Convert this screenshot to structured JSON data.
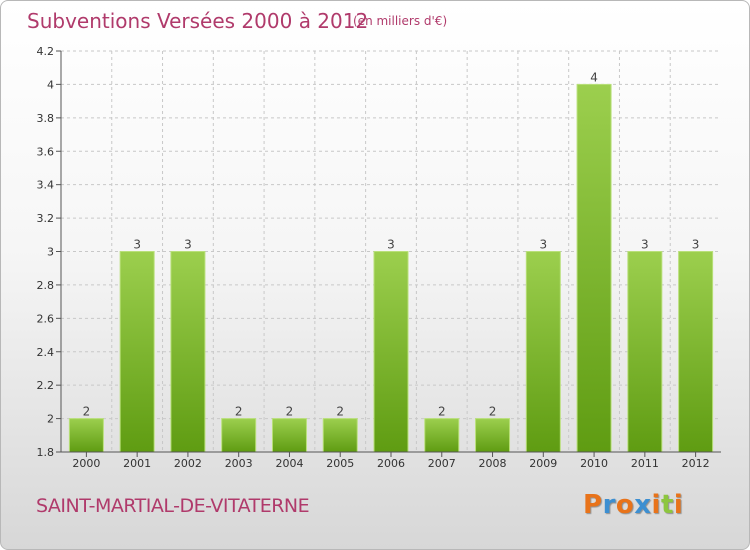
{
  "header": {
    "title": "Subventions Versées 2000 à 2012",
    "subtitle": "(en milliers d'€)"
  },
  "footer": {
    "commune": "SAINT-MARTIAL-DE-VITATERNE",
    "logo_text": "Proxiti",
    "logo_colors": [
      "#e8731a",
      "#3d8fd1",
      "#e8731a",
      "#3d8fd1",
      "#e8731a",
      "#8dc63f",
      "#e8731a"
    ]
  },
  "chart_data": {
    "type": "bar",
    "title": "Subventions Versées 2000 à 2012",
    "subtitle": "(en milliers d'€)",
    "xlabel": "",
    "ylabel": "",
    "categories": [
      "2000",
      "2001",
      "2002",
      "2003",
      "2004",
      "2005",
      "2006",
      "2007",
      "2008",
      "2009",
      "2010",
      "2011",
      "2012"
    ],
    "values": [
      2,
      3,
      3,
      2,
      2,
      2,
      3,
      2,
      2,
      3,
      4,
      3,
      3
    ],
    "data_labels": [
      "2",
      "3",
      "3",
      "2",
      "2",
      "2",
      "3",
      "2",
      "2",
      "3",
      "4",
      "3",
      "3"
    ],
    "ylim": [
      1.8,
      4.2
    ],
    "yticks": [
      1.8,
      2,
      2.2,
      2.4,
      2.6,
      2.8,
      3,
      3.2,
      3.4,
      3.6,
      3.8,
      4,
      4.2
    ],
    "ytick_labels": [
      "1.8",
      "2",
      "2.2",
      "2.4",
      "2.6",
      "2.8",
      "3",
      "3.2",
      "3.4",
      "3.6",
      "3.8",
      "4",
      "4.2"
    ],
    "grid": true,
    "bar_color_light": "#9ccf4e",
    "bar_color_dark": "#5f9c12",
    "grid_color": "#c8c8c8"
  }
}
